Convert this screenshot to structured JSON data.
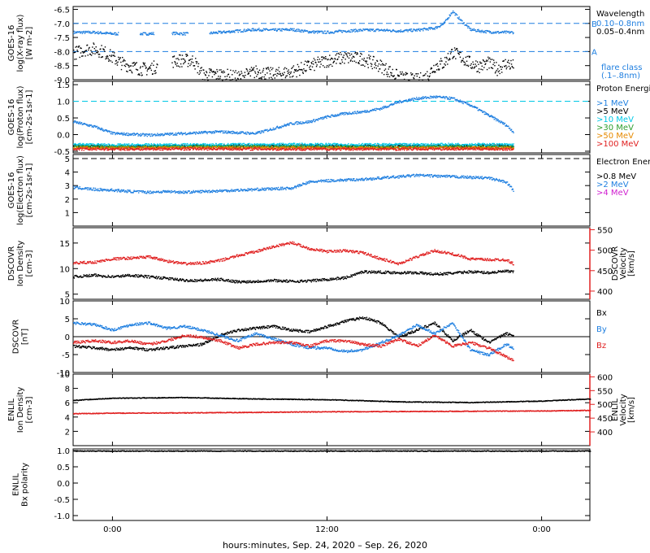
{
  "colors": {
    "black": "#000000",
    "blue": "#1f7fe0",
    "cyan": "#00c8e6",
    "green": "#2e9e2e",
    "orange": "#e68a00",
    "red": "#e02020",
    "magenta": "#d020d0",
    "dash": "#1f7fe0"
  },
  "xaxis": {
    "ticks": [
      "0:00",
      "12:00",
      "0:00"
    ],
    "tick_hours": [
      0,
      12,
      24
    ],
    "range_hours": [
      -2.2,
      26.7
    ],
    "label": "hours:minutes, Sep. 24, 2020 – Sep. 26, 2020"
  },
  "chart_data": [
    {
      "id": "xray",
      "type": "scatter",
      "ylabel": [
        "GOES-16",
        "log(X-ray flux)",
        "[W m-2]"
      ],
      "ylim": [
        -9.0,
        -6.4
      ],
      "yticks": [
        "-6.5",
        "-7.0",
        "-7.5",
        "-8.0",
        "-8.5",
        "-9.0"
      ],
      "ytick_values": [
        -6.5,
        -7.0,
        -7.5,
        -8.0,
        -8.5,
        -9.0
      ],
      "hlines": [
        {
          "y": -7.0,
          "label": "B",
          "color": "blue",
          "dashed": true
        },
        {
          "y": -8.0,
          "label": "A",
          "color": "blue",
          "dashed": true
        }
      ],
      "legend_title": "Wavelength",
      "legend": [
        {
          "text": "0.10–0.8nm",
          "color": "blue"
        },
        {
          "text": "0.05–0.4nm",
          "color": "black"
        }
      ],
      "legend_footer": [
        "flare class",
        "(.1–.8nm)"
      ],
      "series": [
        {
          "name": "0.10–0.8nm",
          "color": "blue",
          "x": [
            -2.2,
            -1,
            0,
            1,
            2,
            3,
            4,
            5,
            6,
            7,
            8,
            9,
            10,
            11,
            12,
            13,
            14,
            15,
            16,
            17,
            18,
            18.5,
            19,
            19.5,
            20,
            20.5,
            21,
            21.5,
            22,
            22.4
          ],
          "y": [
            -7.3,
            -7.3,
            -7.35,
            -7.35,
            -7.35,
            -7.32,
            -7.35,
            -7.35,
            -7.3,
            -7.25,
            -7.2,
            -7.22,
            -7.2,
            -7.28,
            -7.3,
            -7.25,
            -7.22,
            -7.22,
            -7.25,
            -7.22,
            -7.15,
            -7.0,
            -6.55,
            -6.9,
            -7.2,
            -7.25,
            -7.28,
            -7.3,
            -7.3,
            -7.3
          ]
        },
        {
          "name": "0.05–0.4nm",
          "color": "black",
          "x": [
            -2.2,
            -1.5,
            -1,
            -0.5,
            0,
            0.5,
            1,
            1.5,
            2,
            3.5,
            4.5,
            5,
            6,
            7,
            8,
            9,
            10,
            11,
            12,
            13,
            14,
            15,
            16,
            17,
            17.5,
            18,
            18.5,
            19,
            19.5,
            20,
            20.5,
            21,
            21.5,
            22,
            22.4
          ],
          "y": [
            -8.05,
            -7.9,
            -7.9,
            -8.0,
            -8.2,
            -8.4,
            -8.5,
            -8.6,
            -8.6,
            -8.3,
            -8.3,
            -8.8,
            -8.8,
            -8.9,
            -8.7,
            -8.8,
            -8.7,
            -8.5,
            -8.3,
            -8.2,
            -8.25,
            -8.5,
            -8.9,
            -9.0,
            -8.9,
            -8.5,
            -8.4,
            -8.0,
            -8.2,
            -8.4,
            -8.5,
            -8.4,
            -8.6,
            -8.4,
            -8.5
          ]
        }
      ]
    },
    {
      "id": "proton",
      "type": "scatter",
      "ylabel": [
        "GOES-16",
        "log(Proton flux)",
        "[cm-2s-1sr-1]"
      ],
      "ylim": [
        -0.55,
        1.6
      ],
      "yticks": [
        "1.5",
        "1.0",
        "0.5",
        "0.0",
        "-0.5"
      ],
      "ytick_values": [
        1.5,
        1.0,
        0.5,
        0.0,
        -0.5
      ],
      "hlines": [
        {
          "y": 1.0,
          "color": "cyan",
          "dashed": true
        }
      ],
      "legend_title": "Proton Energies",
      "legend": [
        {
          "text": ">1 MeV",
          "color": "blue"
        },
        {
          "text": ">5 MeV",
          "color": "black"
        },
        {
          "text": ">10 MeV",
          "color": "cyan"
        },
        {
          "text": ">30 MeV",
          "color": "green"
        },
        {
          "text": ">50 MeV",
          "color": "orange"
        },
        {
          "text": ">100 MeV",
          "color": "red"
        }
      ],
      "series": [
        {
          "name": ">1 MeV",
          "color": "blue",
          "x": [
            -2.2,
            -1,
            0,
            2,
            4,
            6,
            8,
            9,
            10,
            11,
            12,
            13,
            14,
            15,
            16,
            17,
            18,
            19,
            20,
            21,
            22,
            22.4
          ],
          "y": [
            0.4,
            0.25,
            0.05,
            0.0,
            0.05,
            0.1,
            0.05,
            0.2,
            0.35,
            0.4,
            0.55,
            0.65,
            0.7,
            0.8,
            1.0,
            1.1,
            1.15,
            1.1,
            0.9,
            0.6,
            0.3,
            0.1
          ]
        },
        {
          "name": ">5 MeV",
          "color": "black",
          "x": [
            -2.2,
            0,
            5,
            10,
            15,
            20,
            22.4
          ],
          "y": [
            -0.32,
            -0.34,
            -0.33,
            -0.32,
            -0.33,
            -0.32,
            -0.33
          ]
        },
        {
          "name": ">10 MeV",
          "color": "cyan",
          "x": [
            -2.2,
            0,
            5,
            10,
            15,
            20,
            22.4
          ],
          "y": [
            -0.28,
            -0.3,
            -0.29,
            -0.28,
            -0.29,
            -0.28,
            -0.29
          ]
        },
        {
          "name": ">30 MeV",
          "color": "green",
          "x": [
            -2.2,
            0,
            5,
            10,
            15,
            20,
            22.4
          ],
          "y": [
            -0.35,
            -0.36,
            -0.35,
            -0.35,
            -0.36,
            -0.35,
            -0.36
          ]
        },
        {
          "name": ">50 MeV",
          "color": "orange",
          "x": [
            -2.2,
            0,
            5,
            10,
            15,
            20,
            22.4
          ],
          "y": [
            -0.38,
            -0.39,
            -0.38,
            -0.38,
            -0.39,
            -0.38,
            -0.39
          ]
        },
        {
          "name": ">100 MeV",
          "color": "red",
          "x": [
            -2.2,
            0,
            5,
            10,
            15,
            20,
            22.4
          ],
          "y": [
            -0.42,
            -0.42,
            -0.41,
            -0.42,
            -0.42,
            -0.41,
            -0.42
          ]
        }
      ]
    },
    {
      "id": "electron",
      "type": "scatter",
      "ylabel": [
        "GOES-16",
        "log(Electron flux)",
        "[cm-2s-1sr-1]"
      ],
      "ylim": [
        0,
        5.3
      ],
      "yticks": [
        "5",
        "4",
        "3",
        "2",
        "1"
      ],
      "ytick_values": [
        5,
        4,
        3,
        2,
        1
      ],
      "hlines": [
        {
          "y": 5.0,
          "color": "black",
          "dashed": true
        }
      ],
      "legend_title": "Electron Energies",
      "legend": [
        {
          "text": ">0.8 MeV",
          "color": "black"
        },
        {
          "text": ">2 MeV",
          "color": "blue"
        },
        {
          "text": ">4 MeV",
          "color": "magenta"
        }
      ],
      "series": [
        {
          "name": ">2 MeV",
          "color": "blue",
          "x": [
            -2.2,
            -1,
            0,
            1,
            2,
            3,
            4,
            5,
            6,
            7,
            8,
            9,
            10,
            11,
            12,
            13,
            14,
            15,
            16,
            17,
            18,
            19,
            20,
            21,
            22,
            22.4
          ],
          "y": [
            2.9,
            2.75,
            2.7,
            2.6,
            2.55,
            2.6,
            2.55,
            2.6,
            2.65,
            2.7,
            2.75,
            2.8,
            2.85,
            3.3,
            3.4,
            3.45,
            3.5,
            3.6,
            3.7,
            3.8,
            3.75,
            3.7,
            3.65,
            3.6,
            3.3,
            2.7
          ]
        }
      ]
    },
    {
      "id": "dscovr_density",
      "type": "scatter",
      "ylabel": [
        "DSCOVR",
        "Ion Density",
        "[cm-3]"
      ],
      "ylim": [
        4,
        18
      ],
      "yticks": [
        "15",
        "10",
        "5"
      ],
      "ytick_values": [
        15,
        10,
        5
      ],
      "y2label": [
        "DSCOVR",
        "Velocity",
        "[km/s]"
      ],
      "y2lim": [
        380,
        555
      ],
      "y2ticks": [
        "550",
        "500",
        "450",
        "400"
      ],
      "y2tick_values": [
        550,
        500,
        450,
        400
      ],
      "series": [
        {
          "name": "Density",
          "color": "black",
          "axis": "left",
          "x": [
            -2.2,
            -1,
            0,
            1,
            2,
            3,
            4,
            5,
            6,
            7,
            8,
            9,
            10,
            11,
            12,
            13,
            14,
            15,
            16,
            17,
            18,
            19,
            20,
            21,
            22,
            22.4
          ],
          "y": [
            8.5,
            8.8,
            8.5,
            8.8,
            8.5,
            8.2,
            7.8,
            7.8,
            8.0,
            7.5,
            7.6,
            7.8,
            7.6,
            7.7,
            8.0,
            8.3,
            9.5,
            9.4,
            9.3,
            9.3,
            9.0,
            9.2,
            9.5,
            9.3,
            9.6,
            9.4
          ]
        },
        {
          "name": "Velocity",
          "color": "red",
          "axis": "right",
          "x": [
            -2.2,
            -1,
            0,
            1,
            2,
            3,
            4,
            5,
            6,
            7,
            8,
            9,
            10,
            11,
            12,
            13,
            14,
            15,
            16,
            17,
            18,
            19,
            20,
            21,
            22,
            22.4
          ],
          "y": [
            470,
            472,
            480,
            482,
            485,
            475,
            468,
            470,
            476,
            488,
            498,
            510,
            520,
            505,
            498,
            500,
            495,
            480,
            468,
            485,
            500,
            492,
            480,
            478,
            478,
            468
          ]
        }
      ]
    },
    {
      "id": "dscovr_b",
      "type": "scatter",
      "ylabel": [
        "DSCOVR",
        "[nT]"
      ],
      "ylim": [
        -10,
        10
      ],
      "yticks": [
        "10",
        "5",
        "0",
        "-5",
        "-10"
      ],
      "ytick_values": [
        10,
        5,
        0,
        -5,
        -10
      ],
      "zero_line": true,
      "legend": [
        {
          "text": "Bx",
          "color": "black"
        },
        {
          "text": "By",
          "color": "blue"
        },
        {
          "text": "Bz",
          "color": "red"
        }
      ],
      "series": [
        {
          "name": "Bx",
          "color": "black",
          "x": [
            -2.2,
            -1,
            0,
            1,
            2,
            3,
            4,
            5,
            6,
            7,
            8,
            9,
            10,
            11,
            12,
            13,
            14,
            15,
            16,
            17,
            18,
            19,
            20,
            21,
            22,
            22.4
          ],
          "y": [
            -2.5,
            -3.0,
            -3.5,
            -3.0,
            -3.5,
            -3.0,
            -2.5,
            -2.0,
            0.5,
            2.0,
            2.5,
            3.0,
            2.0,
            1.5,
            3.0,
            4.5,
            5.5,
            4.0,
            0.0,
            2.0,
            4.0,
            -1.0,
            2.0,
            -1.5,
            1.0,
            0.5
          ]
        },
        {
          "name": "By",
          "color": "blue",
          "x": [
            -2.2,
            -1,
            0,
            1,
            2,
            3,
            4,
            5,
            6,
            7,
            8,
            9,
            10,
            11,
            12,
            13,
            14,
            15,
            16,
            17,
            18,
            19,
            20,
            21,
            22,
            22.4
          ],
          "y": [
            4.0,
            3.5,
            2.0,
            3.5,
            4.0,
            2.5,
            3.0,
            2.0,
            0.5,
            -1.0,
            1.0,
            -0.5,
            -2.0,
            -3.0,
            -3.0,
            -4.0,
            -3.5,
            -1.5,
            0.5,
            3.5,
            1.0,
            4.0,
            -3.5,
            -5.0,
            -2.0,
            -3.0
          ]
        },
        {
          "name": "Bz",
          "color": "red",
          "x": [
            -2.2,
            -1,
            0,
            1,
            2,
            3,
            4,
            5,
            6,
            7,
            8,
            9,
            10,
            11,
            12,
            13,
            14,
            15,
            16,
            17,
            18,
            19,
            20,
            21,
            22,
            22.4
          ],
          "y": [
            -1.5,
            -1.0,
            -1.5,
            -1.0,
            -2.0,
            -1.0,
            0.5,
            0.0,
            -1.0,
            -3.0,
            -2.0,
            -1.5,
            -1.5,
            -2.5,
            -1.0,
            -1.0,
            -2.0,
            -2.5,
            -0.5,
            -2.5,
            0.5,
            -2.5,
            -1.5,
            -3.0,
            -5.5,
            -6.5
          ]
        }
      ]
    },
    {
      "id": "enlil_density",
      "type": "scatter",
      "ylabel": [
        "ENLIL",
        "Ion Density",
        "[cm-3]"
      ],
      "ylim": [
        0,
        10
      ],
      "yticks": [
        "10",
        "8",
        "6",
        "4",
        "2"
      ],
      "ytick_values": [
        10,
        8,
        6,
        4,
        2
      ],
      "y2label": [
        "ENLIL",
        "Velocity",
        "[km/s]"
      ],
      "y2lim": [
        350,
        610
      ],
      "y2ticks": [
        "600",
        "550",
        "500",
        "450",
        "400"
      ],
      "y2tick_values": [
        600,
        550,
        500,
        450,
        400
      ],
      "series": [
        {
          "name": "Density",
          "color": "black",
          "axis": "left",
          "x": [
            -2.2,
            0,
            4,
            8,
            12,
            16,
            20,
            24,
            26.7
          ],
          "y": [
            6.4,
            6.7,
            6.8,
            6.6,
            6.5,
            6.2,
            6.1,
            6.3,
            6.6
          ]
        },
        {
          "name": "Velocity",
          "color": "red",
          "axis": "right",
          "x": [
            -2.2,
            0,
            4,
            8,
            12,
            16,
            20,
            24,
            26.7
          ],
          "y": [
            468,
            470,
            471,
            473,
            475,
            476,
            477,
            478,
            480
          ]
        }
      ]
    },
    {
      "id": "enlil_polarity",
      "type": "scatter",
      "ylabel": [
        "ENLIL",
        "Bx polarity"
      ],
      "ylim": [
        -1.15,
        1.05
      ],
      "yticks": [
        "1.0",
        "0.5",
        "0.0",
        "-0.5",
        "-1.0"
      ],
      "ytick_values": [
        1.0,
        0.5,
        0.0,
        -0.5,
        -1.0
      ],
      "series": [
        {
          "name": "Polarity",
          "color": "black",
          "x": [
            -2.2,
            26.7
          ],
          "y": [
            1.0,
            1.0
          ]
        }
      ]
    }
  ]
}
